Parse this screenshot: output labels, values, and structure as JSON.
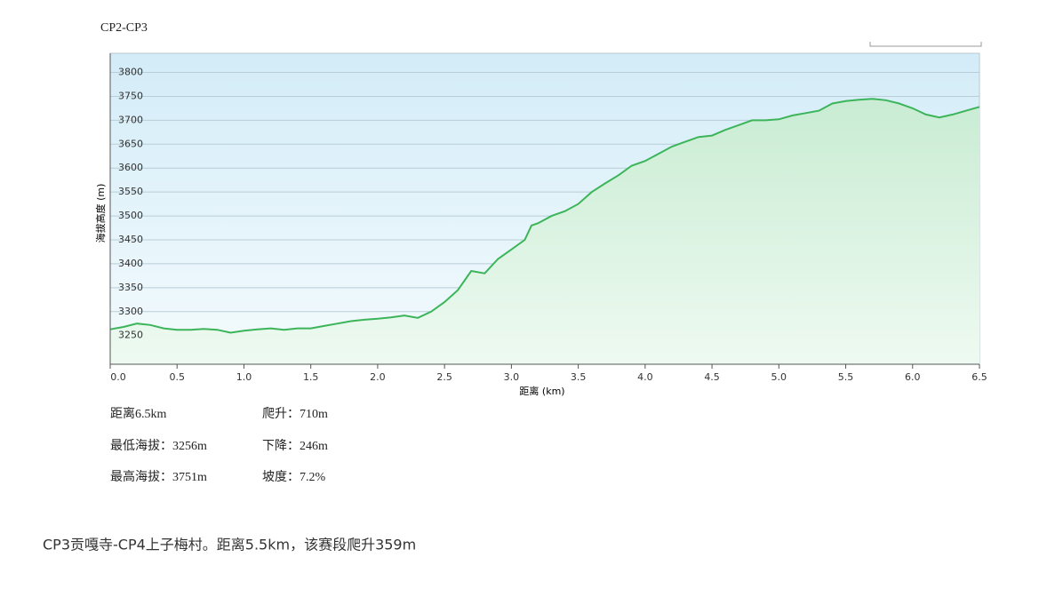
{
  "chart_data": {
    "type": "line",
    "title": "CP2-CP3",
    "x_label": "距离 (km)",
    "y_label": "海拔高度 (m)",
    "x": [
      0.0,
      0.1,
      0.2,
      0.3,
      0.4,
      0.5,
      0.6,
      0.7,
      0.8,
      0.9,
      1.0,
      1.1,
      1.2,
      1.3,
      1.4,
      1.5,
      1.6,
      1.7,
      1.8,
      1.9,
      2.0,
      2.1,
      2.2,
      2.3,
      2.4,
      2.5,
      2.6,
      2.7,
      2.8,
      2.9,
      3.0,
      3.1,
      3.15,
      3.2,
      3.3,
      3.4,
      3.5,
      3.6,
      3.7,
      3.8,
      3.9,
      4.0,
      4.1,
      4.2,
      4.3,
      4.4,
      4.5,
      4.6,
      4.7,
      4.8,
      4.9,
      5.0,
      5.1,
      5.2,
      5.3,
      5.4,
      5.5,
      5.6,
      5.7,
      5.8,
      5.9,
      6.0,
      6.1,
      6.2,
      6.3,
      6.4,
      6.5
    ],
    "series": [
      {
        "name": "海拔高度",
        "color": "#3cb55a",
        "values": [
          3263,
          3268,
          3275,
          3272,
          3265,
          3262,
          3262,
          3264,
          3262,
          3256,
          3260,
          3263,
          3265,
          3262,
          3265,
          3265,
          3270,
          3275,
          3280,
          3283,
          3285,
          3288,
          3292,
          3287,
          3300,
          3320,
          3345,
          3385,
          3380,
          3410,
          3430,
          3450,
          3480,
          3485,
          3500,
          3510,
          3525,
          3550,
          3568,
          3585,
          3605,
          3615,
          3630,
          3645,
          3655,
          3665,
          3668,
          3680,
          3690,
          3700,
          3700,
          3702,
          3710,
          3715,
          3720,
          3735,
          3740,
          3743,
          3745,
          3742,
          3735,
          3725,
          3712,
          3706,
          3712,
          3720,
          3728
        ]
      }
    ],
    "xlim": [
      0,
      6.5
    ],
    "xticks": [
      {
        "value": 0,
        "label": "0.0"
      },
      {
        "value": 0.5,
        "label": "0.5"
      },
      {
        "value": 1,
        "label": "1.0"
      },
      {
        "value": 1.5,
        "label": "1.5"
      },
      {
        "value": 2,
        "label": "2.0"
      },
      {
        "value": 2.5,
        "label": "2.5"
      },
      {
        "value": 3,
        "label": "3.0"
      },
      {
        "value": 3.5,
        "label": "3.5"
      },
      {
        "value": 4,
        "label": "4.0"
      },
      {
        "value": 4.5,
        "label": "4.5"
      },
      {
        "value": 5,
        "label": "5.0"
      },
      {
        "value": 5.5,
        "label": "5.5"
      },
      {
        "value": 6,
        "label": "6.0"
      },
      {
        "value": 6.5,
        "label": "6.5"
      }
    ],
    "ylim": [
      3190,
      3840
    ],
    "yticks": [
      3250,
      3300,
      3350,
      3400,
      3450,
      3500,
      3550,
      3600,
      3650,
      3700,
      3750,
      3800
    ],
    "grid": true,
    "stats": [
      "距离6.5km",
      "爬升：710m",
      "最低海拔：3256m",
      "下降：246m",
      "最高海拔：3751m",
      "坡度：7.2%"
    ],
    "footer": "CP3贡嘎寺-CP4上子梅村。距离5.5km，该赛段爬升359m"
  }
}
